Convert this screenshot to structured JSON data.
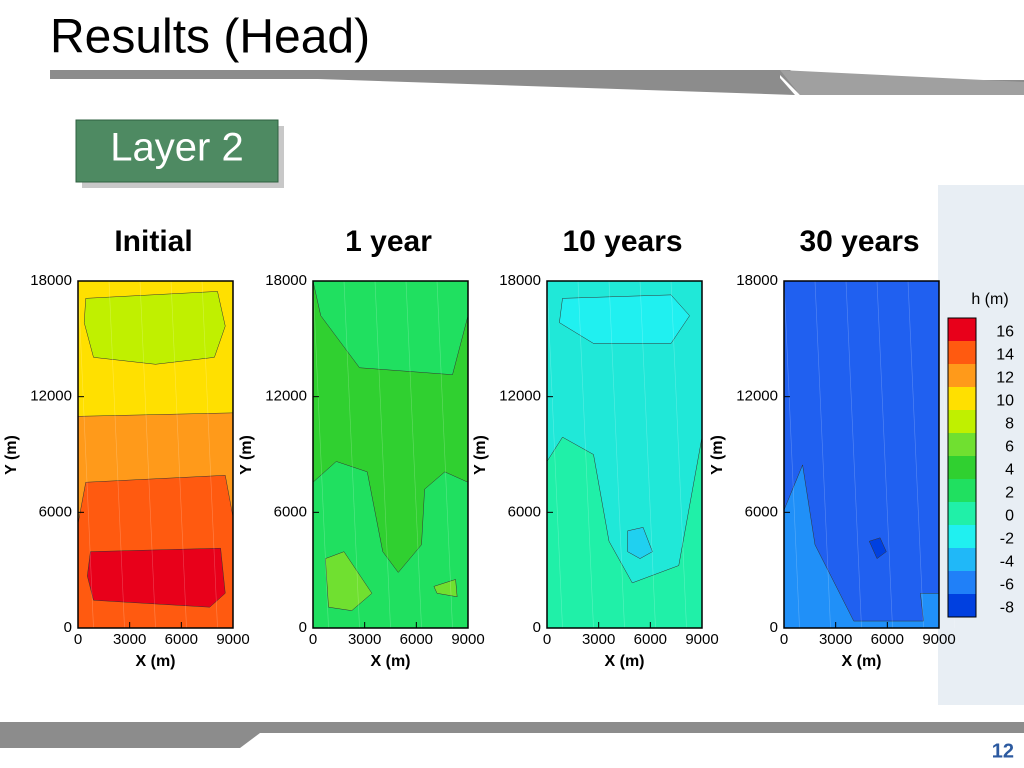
{
  "title": "Results (Head)",
  "badge": "Layer 2",
  "panels": [
    {
      "title": "Initial"
    },
    {
      "title": "1 year"
    },
    {
      "title": "10 years"
    },
    {
      "title": "30 years"
    }
  ],
  "axes": {
    "xlabel": "X (m)",
    "ylabel": "Y (m)",
    "xticks": [
      0,
      3000,
      6000,
      9000
    ],
    "yticks": [
      0,
      6000,
      12000,
      18000
    ]
  },
  "legend": {
    "title": "h (m)",
    "labels": [
      16,
      14,
      12,
      10,
      8,
      6,
      4,
      2,
      0,
      -2,
      -4,
      -6,
      -8
    ],
    "colors": [
      "#e8001a",
      "#ff5a10",
      "#ff9a1a",
      "#ffe000",
      "#c0f000",
      "#70e030",
      "#30d030",
      "#20e060",
      "#20f0a8",
      "#20f0f0",
      "#20b8f8",
      "#2080f8",
      "#0040e0"
    ]
  },
  "page_number": 12
}
